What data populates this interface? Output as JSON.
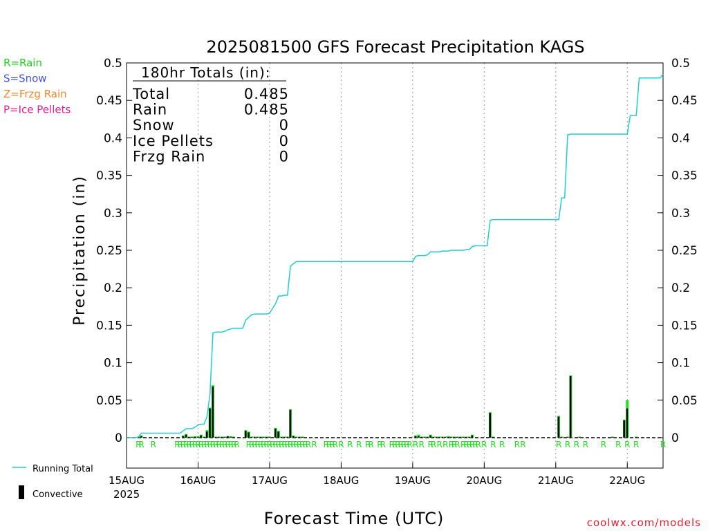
{
  "chart_data": {
    "type": "bar",
    "title": "2025081500 GFS Forecast Precipitation KAGS",
    "xlabel": "Forecast Time (UTC)",
    "ylabel": "Precipitation (in)",
    "watermark": "coolwx.com/models",
    "ylim": [
      0,
      0.5
    ],
    "xlim": [
      0,
      180
    ],
    "y_ticks": [
      0,
      0.05,
      0.1,
      0.15,
      0.2,
      0.25,
      0.3,
      0.35,
      0.4,
      0.45,
      0.5
    ],
    "y_tick_labels": [
      "0",
      "0.05",
      "0.1",
      "0.15",
      "0.2",
      "0.25",
      "0.3",
      "0.35",
      "0.4",
      "0.45",
      "0.5"
    ],
    "x_ticks": [
      0,
      24,
      48,
      72,
      96,
      120,
      144,
      168
    ],
    "x_tick_labels": [
      "15AUG",
      "16AUG",
      "17AUG",
      "18AUG",
      "19AUG",
      "20AUG",
      "21AUG",
      "22AUG"
    ],
    "x_year_label": "2025",
    "type_legend": [
      {
        "label": "R=Rain",
        "color": "#22cc22"
      },
      {
        "label": "S=Snow",
        "color": "#4455dd"
      },
      {
        "label": "Z=Frzg Rain",
        "color": "#ee8833"
      },
      {
        "label": "P=Ice Pellets",
        "color": "#dd2299"
      }
    ],
    "series_legend": [
      {
        "label": "Running Total",
        "kind": "line",
        "color": "#22cccc"
      },
      {
        "label": "Convective",
        "kind": "bar",
        "color": "#000000"
      }
    ],
    "totals": {
      "heading": "180hr Totals (in):",
      "rows": [
        {
          "label": "Total",
          "value": "0.485"
        },
        {
          "label": "Rain",
          "value": "0.485"
        },
        {
          "label": "Snow",
          "value": "0"
        },
        {
          "label": "Ice Pellets",
          "value": "0"
        },
        {
          "label": "Frzg Rain",
          "value": "0"
        }
      ]
    },
    "colors": {
      "rain_bar": "#22dd22",
      "convective_bar": "#000000",
      "running_total": "#22cccc",
      "grid": "#999999"
    },
    "running_total": {
      "x": [
        0,
        3,
        4,
        5,
        18,
        19,
        20,
        21,
        22,
        23,
        24,
        25,
        26,
        27,
        28,
        29,
        30,
        31,
        32,
        33,
        34,
        35,
        36,
        37,
        38,
        39,
        40,
        42,
        43,
        44,
        45,
        46,
        47,
        48,
        50,
        51,
        52,
        53,
        54,
        55,
        56,
        57,
        58,
        59,
        60,
        61,
        62,
        63,
        96,
        97,
        98,
        99,
        100,
        101,
        102,
        103,
        104,
        105,
        106,
        107,
        108,
        109,
        110,
        111,
        112,
        113,
        114,
        115,
        116,
        117,
        118,
        119,
        120,
        121,
        122,
        123,
        145,
        146,
        147,
        148,
        149,
        150,
        151,
        152,
        153,
        168,
        169,
        170,
        171,
        172,
        173,
        174,
        175,
        176,
        177,
        178,
        179,
        180
      ],
      "y": [
        0,
        0,
        0.001,
        0.006,
        0.006,
        0.009,
        0.012,
        0.012,
        0.012,
        0.014,
        0.017,
        0.018,
        0.018,
        0.028,
        0.058,
        0.14,
        0.141,
        0.141,
        0.141,
        0.142,
        0.144,
        0.145,
        0.146,
        0.146,
        0.146,
        0.146,
        0.157,
        0.164,
        0.165,
        0.165,
        0.165,
        0.165,
        0.165,
        0.166,
        0.179,
        0.189,
        0.189,
        0.19,
        0.19,
        0.229,
        0.232,
        0.235,
        0.235,
        0.235,
        0.235,
        0.235,
        0.235,
        0.235,
        0.235,
        0.242,
        0.243,
        0.243,
        0.243,
        0.244,
        0.248,
        0.248,
        0.248,
        0.248,
        0.249,
        0.249,
        0.249,
        0.25,
        0.25,
        0.25,
        0.25,
        0.25,
        0.251,
        0.251,
        0.255,
        0.256,
        0.256,
        0.256,
        0.256,
        0.256,
        0.29,
        0.291,
        0.291,
        0.32,
        0.32,
        0.404,
        0.405,
        0.405,
        0.405,
        0.405,
        0.405,
        0.405,
        0.43,
        0.43,
        0.43,
        0.48,
        0.48,
        0.48,
        0.48,
        0.48,
        0.48,
        0.48,
        0.48,
        0.485
      ]
    },
    "hourly_bars": {
      "x": [
        4,
        5,
        19,
        20,
        21,
        22,
        23,
        24,
        25,
        26,
        27,
        28,
        29,
        30,
        31,
        32,
        33,
        34,
        35,
        36,
        40,
        41,
        42,
        43,
        44,
        45,
        46,
        47,
        48,
        50,
        51,
        52,
        53,
        54,
        55,
        56,
        57,
        58,
        59,
        97,
        98,
        99,
        100,
        101,
        102,
        103,
        104,
        105,
        106,
        107,
        108,
        109,
        110,
        111,
        112,
        113,
        114,
        115,
        116,
        122,
        123,
        145,
        146,
        148,
        149,
        152,
        163,
        167,
        168,
        171
      ],
      "total": [
        0.001,
        0.003,
        0.003,
        0.005,
        0.001,
        0.001,
        0.002,
        0.002,
        0.004,
        0.001,
        0.01,
        0.04,
        0.07,
        0.001,
        0.001,
        0.001,
        0.001,
        0.002,
        0.002,
        0.001,
        0.01,
        0.008,
        0.001,
        0.001,
        0.001,
        0.001,
        0.001,
        0.001,
        0.001,
        0.013,
        0.009,
        0.001,
        0.001,
        0.001,
        0.038,
        0.003,
        0.001,
        0.001,
        0.001,
        0.003,
        0.004,
        0.001,
        0.001,
        0.001,
        0.004,
        0.001,
        0.001,
        0.001,
        0.001,
        0.001,
        0.002,
        0.001,
        0.001,
        0.001,
        0.001,
        0.001,
        0.001,
        0.001,
        0.004,
        0.034,
        0.001,
        0.029,
        0.001,
        0.001,
        0.083,
        0.001,
        0.001,
        0.024,
        0.05,
        0.001
      ],
      "convective": [
        0.001,
        0.002,
        0.002,
        0.004,
        0.001,
        0.001,
        0.001,
        0.001,
        0.003,
        0.001,
        0.008,
        0.039,
        0.068,
        0.001,
        0.001,
        0.001,
        0.001,
        0.002,
        0.001,
        0.001,
        0.009,
        0.007,
        0.001,
        0.001,
        0.001,
        0.001,
        0.001,
        0.001,
        0.001,
        0.012,
        0.008,
        0.001,
        0.001,
        0.001,
        0.037,
        0.002,
        0.001,
        0.001,
        0.001,
        0.002,
        0.002,
        0.001,
        0.001,
        0.001,
        0.003,
        0.001,
        0.001,
        0.001,
        0.001,
        0.001,
        0.001,
        0.001,
        0.001,
        0.001,
        0.001,
        0.001,
        0.001,
        0.001,
        0.003,
        0.033,
        0.001,
        0.028,
        0.001,
        0.001,
        0.082,
        0.001,
        0.001,
        0.023,
        0.039,
        0.001
      ]
    },
    "type_markers": {
      "symbol": "R",
      "x": [
        4,
        5,
        9,
        17,
        18,
        19,
        20,
        21,
        22,
        23,
        24,
        25,
        26,
        27,
        28,
        29,
        30,
        31,
        32,
        33,
        34,
        35,
        36,
        37,
        41,
        42,
        43,
        44,
        45,
        46,
        47,
        48,
        49,
        50,
        51,
        52,
        53,
        54,
        55,
        56,
        57,
        58,
        59,
        60,
        61,
        63,
        67,
        68,
        69,
        70,
        72,
        75,
        78,
        81,
        82,
        85,
        86,
        89,
        90,
        91,
        92,
        93,
        94,
        95,
        97,
        99,
        102,
        103,
        105,
        107,
        109,
        110,
        111,
        113,
        114,
        115,
        116,
        117,
        118,
        120,
        123,
        126,
        131,
        133,
        145,
        148,
        151,
        154,
        160,
        165,
        168,
        171,
        180
      ]
    }
  }
}
